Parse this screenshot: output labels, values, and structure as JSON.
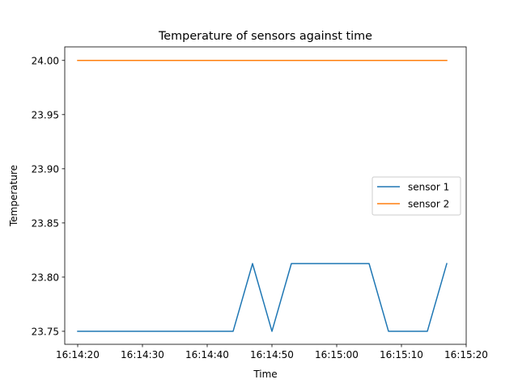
{
  "chart_data": {
    "type": "line",
    "title": "Temperature of sensors against time",
    "xlabel": "Time",
    "ylabel": "Temperature",
    "x_scale": "time",
    "xlim": [
      "16:14:18",
      "16:15:20"
    ],
    "ylim": [
      23.738,
      24.0125
    ],
    "xticks": [
      "16:14:20",
      "16:14:30",
      "16:14:40",
      "16:14:50",
      "16:15:00",
      "16:15:10",
      "16:15:20"
    ],
    "yticks": [
      "23.75",
      "23.80",
      "23.85",
      "23.90",
      "23.95",
      "24.00"
    ],
    "grid": false,
    "legend_position": "center-right",
    "series": [
      {
        "name": "sensor 1",
        "color": "#1f77b4",
        "x": [
          "16:14:20",
          "16:14:44",
          "16:14:47",
          "16:14:50",
          "16:14:53",
          "16:15:05",
          "16:15:08",
          "16:15:14",
          "16:15:17"
        ],
        "y": [
          23.75,
          23.75,
          23.8125,
          23.75,
          23.8125,
          23.8125,
          23.75,
          23.75,
          23.8125
        ]
      },
      {
        "name": "sensor 2",
        "color": "#ff7f0e",
        "x": [
          "16:14:20",
          "16:15:17"
        ],
        "y": [
          24.0,
          24.0
        ]
      }
    ]
  }
}
